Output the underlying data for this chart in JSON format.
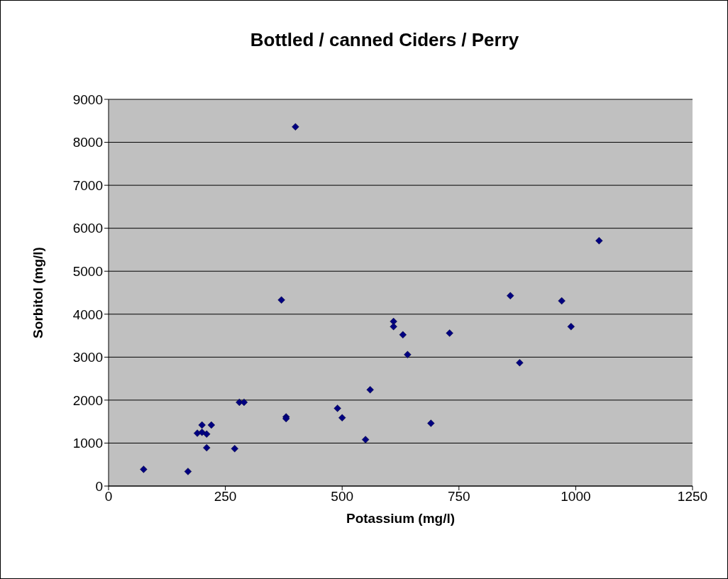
{
  "chart_data": {
    "type": "scatter",
    "title": "Bottled / canned  Ciders / Perry",
    "xlabel": "Potassium (mg/l)",
    "ylabel": "Sorbitol (mg/l)",
    "xlim": [
      0,
      1250
    ],
    "xticks": [
      0,
      250,
      500,
      750,
      1000,
      1250
    ],
    "ylim": [
      0,
      9000
    ],
    "yticks": [
      0,
      1000,
      2000,
      3000,
      4000,
      5000,
      6000,
      7000,
      8000,
      9000
    ],
    "grid": "y",
    "legend": false,
    "marker": "diamond",
    "series": [
      {
        "color": "#000080",
        "x": [
          75,
          170,
          190,
          200,
          200,
          210,
          220,
          210,
          270,
          280,
          290,
          380,
          380,
          370,
          400,
          490,
          500,
          550,
          560,
          610,
          610,
          630,
          640,
          690,
          730,
          860,
          880,
          970,
          990,
          1050
        ],
        "values": [
          390,
          340,
          1230,
          1420,
          1250,
          1210,
          1420,
          890,
          870,
          1950,
          1950,
          1610,
          1570,
          4330,
          8360,
          1810,
          1590,
          1080,
          2240,
          3830,
          3710,
          3520,
          3060,
          1460,
          3560,
          4430,
          2870,
          4310,
          3710,
          5710
        ]
      }
    ]
  }
}
